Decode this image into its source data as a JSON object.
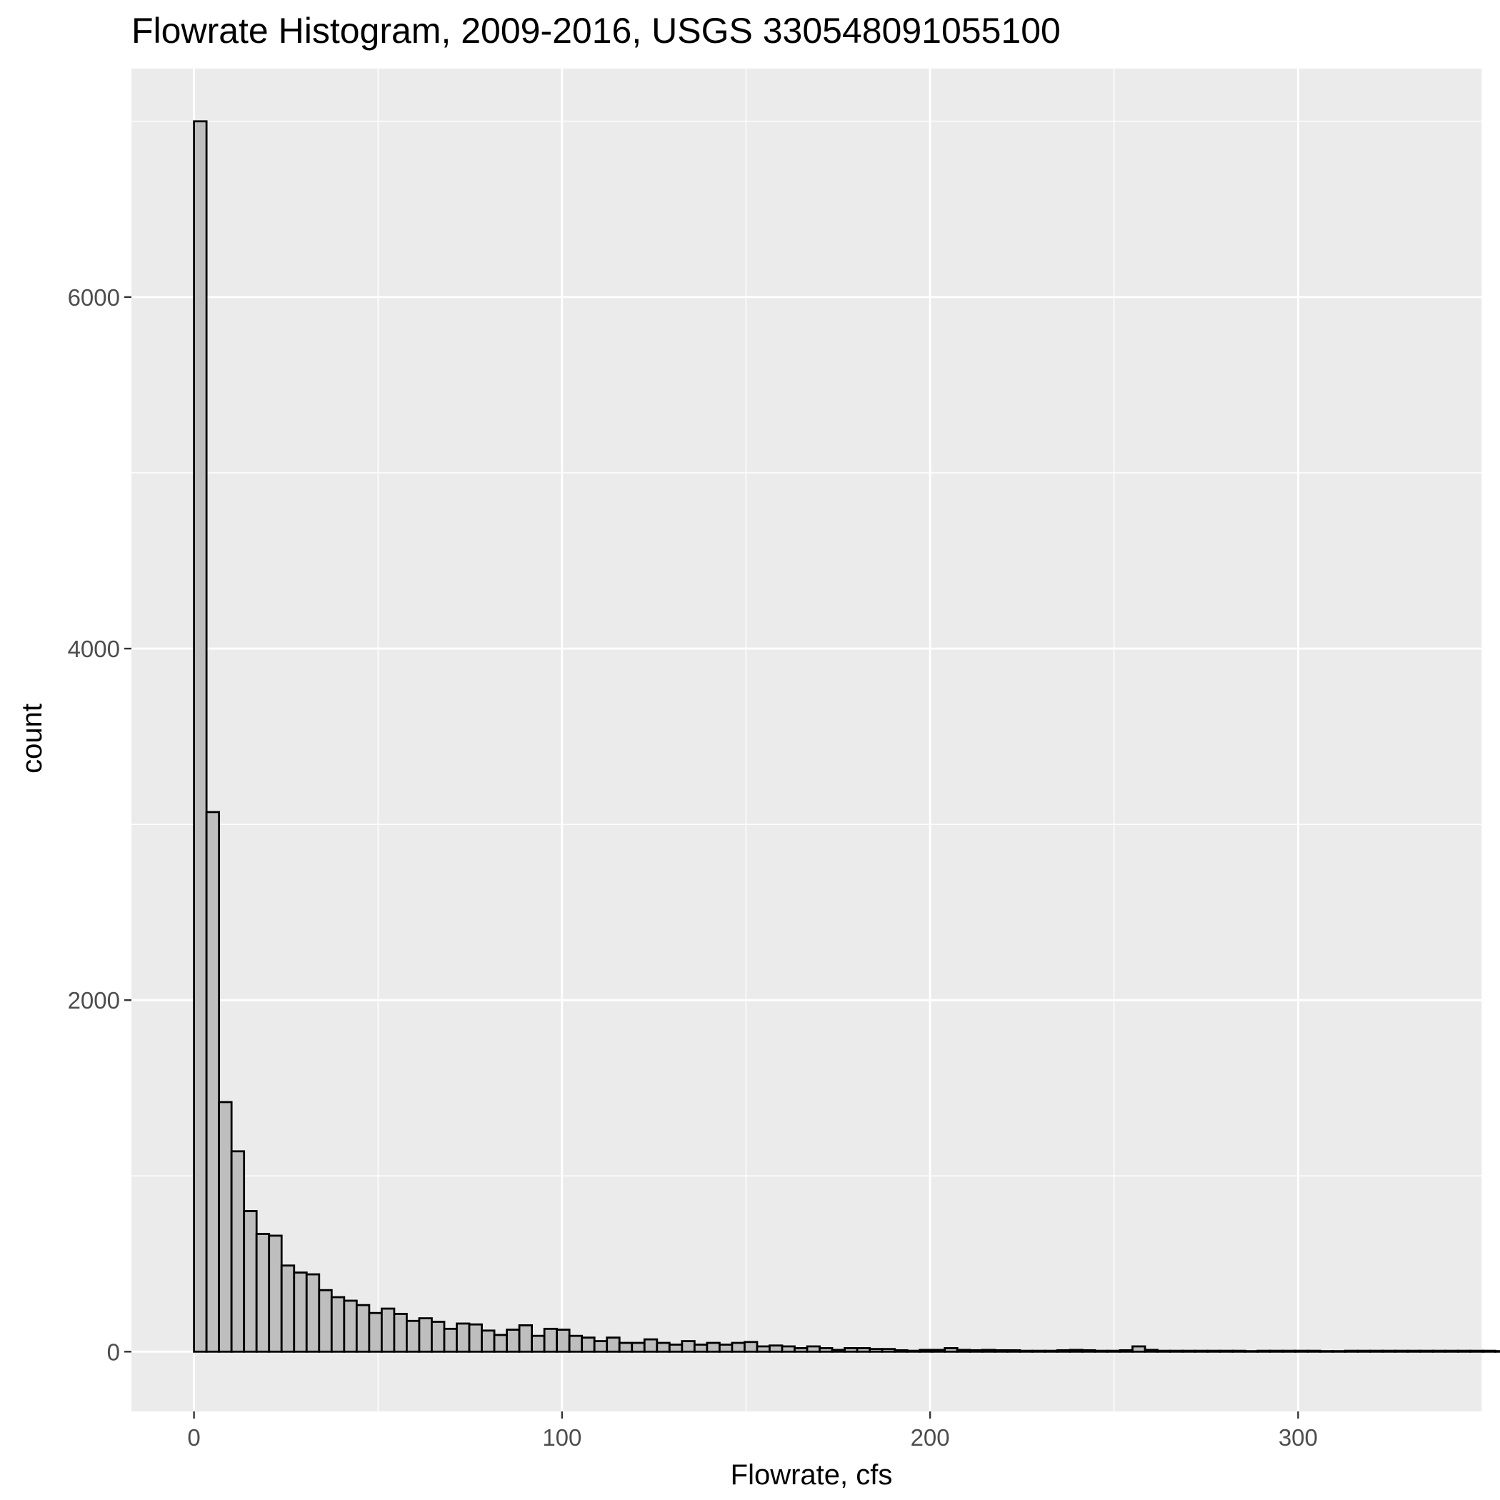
{
  "chart_data": {
    "type": "bar",
    "title": "Flowrate Histogram, 2009-2016, USGS 330548091055100",
    "xlabel": "Flowrate, cfs",
    "ylabel": "count",
    "bin_width": 3.4,
    "x_start": 0,
    "xlim": [
      -17,
      350
    ],
    "ylim": [
      -340,
      7300
    ],
    "x_ticks": [
      0,
      100,
      200,
      300
    ],
    "x_minor_ticks": [
      50,
      150,
      250,
      350
    ],
    "y_ticks": [
      0,
      2000,
      4000,
      6000
    ],
    "y_minor_ticks": [
      1000,
      3000,
      5000,
      7000
    ],
    "grid": true,
    "values": [
      7000,
      3070,
      1420,
      1140,
      800,
      670,
      660,
      490,
      450,
      440,
      350,
      310,
      290,
      265,
      220,
      245,
      215,
      175,
      190,
      170,
      130,
      160,
      155,
      120,
      95,
      125,
      150,
      90,
      130,
      125,
      90,
      80,
      60,
      80,
      50,
      50,
      70,
      50,
      40,
      60,
      40,
      50,
      40,
      50,
      55,
      30,
      35,
      30,
      20,
      30,
      20,
      10,
      20,
      20,
      15,
      15,
      8,
      5,
      10,
      10,
      20,
      10,
      8,
      10,
      8,
      8,
      5,
      5,
      5,
      8,
      10,
      8,
      5,
      5,
      8,
      30,
      10,
      5,
      5,
      5,
      5,
      5,
      5,
      5,
      3,
      5,
      5,
      5,
      5,
      5,
      3,
      3,
      5,
      5,
      5,
      5,
      5,
      5,
      5,
      5,
      5,
      5,
      5,
      5,
      3,
      8,
      3,
      5,
      5,
      5,
      5,
      3,
      5,
      5,
      5,
      5,
      5,
      3,
      3,
      5,
      5,
      5,
      5,
      5,
      5,
      3,
      3,
      3,
      3,
      3
    ],
    "colors": {
      "panel": "#ebebeb",
      "grid": "#ffffff",
      "bar_fill": "#bebebe",
      "bar_stroke": "#000000",
      "tick": "#333333"
    }
  }
}
